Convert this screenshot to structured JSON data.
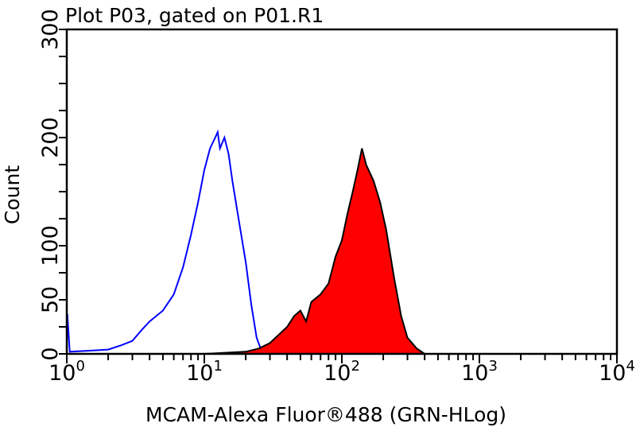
{
  "chart_data": {
    "type": "area",
    "title": "Plot P03, gated on P01.R1",
    "xlabel": "MCAM-Alexa Fluor®488 (GRN-HLog)",
    "ylabel": "Count",
    "x_scale": "log",
    "xlim": [
      1,
      10000
    ],
    "ylim": [
      0,
      300
    ],
    "x_ticks": [
      {
        "base": "10",
        "exp": "0"
      },
      {
        "base": "10",
        "exp": "1"
      },
      {
        "base": "10",
        "exp": "2"
      },
      {
        "base": "10",
        "exp": "3"
      },
      {
        "base": "10",
        "exp": "4"
      }
    ],
    "y_ticks": [
      "0",
      "50",
      "100",
      "200",
      "300"
    ],
    "y_tick_values": [
      0,
      50,
      100,
      200,
      300
    ],
    "grid": false,
    "series": [
      {
        "style": "line",
        "color": "#0000ff",
        "x": [
          1,
          1.01,
          1.05,
          1.5,
          2,
          2.5,
          3,
          3.5,
          4,
          5,
          6,
          7,
          8,
          9,
          10,
          11,
          12,
          12.5,
          13,
          14,
          15,
          16,
          18,
          20,
          22,
          24,
          26,
          30
        ],
        "y": [
          0,
          37,
          2,
          3,
          4,
          8,
          12,
          22,
          30,
          40,
          55,
          80,
          110,
          140,
          170,
          190,
          200,
          205,
          190,
          200,
          185,
          160,
          120,
          85,
          45,
          15,
          3,
          0
        ]
      },
      {
        "style": "filled",
        "color": "#ff0000",
        "edge": "#000000",
        "x": [
          1,
          10,
          20,
          25,
          30,
          35,
          40,
          45,
          50,
          55,
          60,
          70,
          80,
          90,
          100,
          110,
          120,
          130,
          140,
          150,
          170,
          190,
          210,
          240,
          270,
          300,
          350,
          400,
          10000
        ],
        "y": [
          0,
          0,
          2,
          5,
          10,
          18,
          25,
          35,
          40,
          30,
          48,
          55,
          65,
          90,
          105,
          130,
          150,
          170,
          190,
          175,
          160,
          140,
          115,
          70,
          35,
          15,
          5,
          0,
          0
        ]
      }
    ]
  }
}
